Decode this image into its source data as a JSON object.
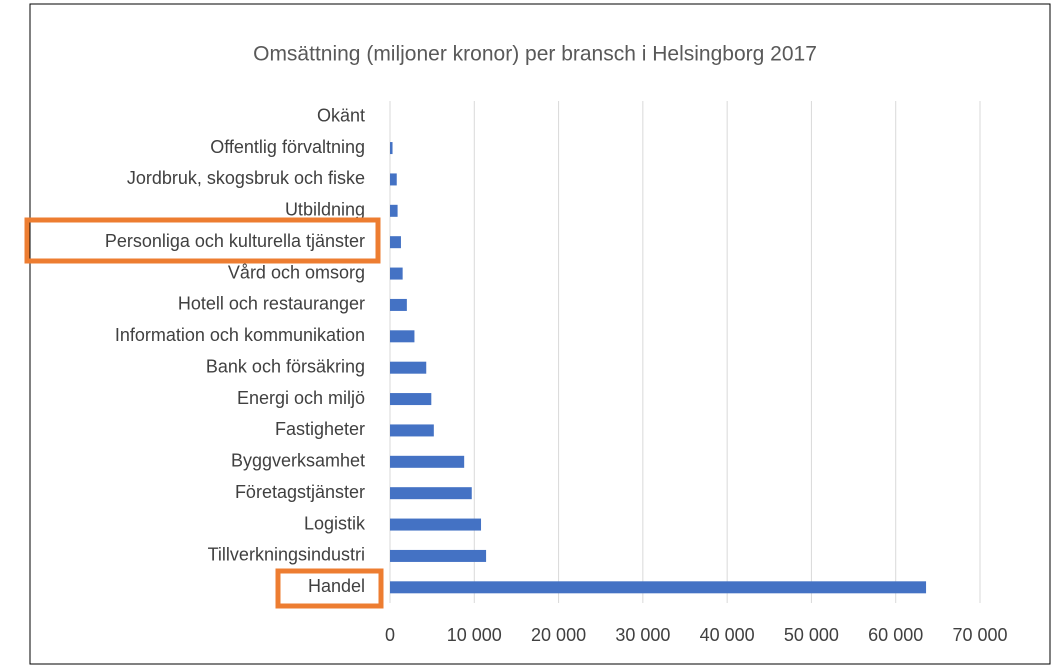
{
  "chart_data": {
    "type": "barh",
    "title": "Omsättning (miljoner kronor) per bransch i Helsingborg 2017",
    "categories": [
      "Okänt",
      "Offentlig förvaltning",
      "Jordbruk, skogsbruk och fiske",
      "Utbildning",
      "Personliga och kulturella tjänster",
      "Vård och omsorg",
      "Hotell och restauranger",
      "Information och kommunikation",
      "Bank och försäkring",
      "Energi och miljö",
      "Fastigheter",
      "Byggverksamhet",
      "Företagstjänster",
      "Logistik",
      "Tillverkningsindustri",
      "Handel"
    ],
    "values": [
      0,
      300,
      800,
      900,
      1300,
      1500,
      2000,
      2900,
      4300,
      4900,
      5200,
      8800,
      9700,
      10800,
      11400,
      63600
    ],
    "color": "#4472c4",
    "xlim": [
      0,
      70000
    ],
    "xticks": [
      0,
      {
        "value": 10000,
        "label": "10 000"
      },
      {
        "value": 20000,
        "label": "20 000"
      },
      {
        "value": 30000,
        "label": "30 000"
      },
      {
        "value": 40000,
        "label": "40 000"
      },
      {
        "value": 50000,
        "label": "50 000"
      },
      {
        "value": 60000,
        "label": "60 000"
      },
      {
        "value": 70000,
        "label": "70 000"
      }
    ],
    "grid": true
  }
}
